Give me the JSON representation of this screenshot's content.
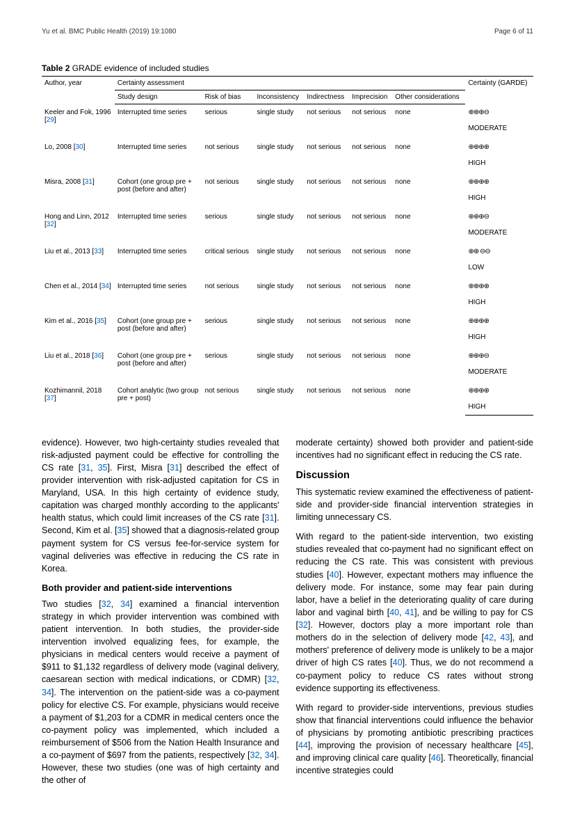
{
  "header": {
    "left": "Yu et al. BMC Public Health        (2019) 19:1080",
    "right": "Page 6 of 11"
  },
  "table": {
    "title_bold": "Table 2",
    "title_rest": " GRADE evidence of included studies",
    "headers": {
      "author": "Author, year",
      "assessment": "Certainty assessment",
      "design": "Study design",
      "risk": "Risk of bias",
      "inconsistency": "Inconsistency",
      "indirectness": "Indirectness",
      "imprecision": "Imprecision",
      "other": "Other considerations",
      "certainty": "Certainty (GARDE)"
    },
    "rows": [
      {
        "author": "Keeler and Fok, 1996 [",
        "ref": "29",
        "author2": "]",
        "design": "Interrupted time series",
        "risk": "serious",
        "inc": "single study",
        "ind": "not serious",
        "imp": "not serious",
        "other": "none",
        "sym": "⊕⊕⊕⊖",
        "label": "MODERATE"
      },
      {
        "author": "Lo, 2008 [",
        "ref": "30",
        "author2": "]",
        "design": "Interrupted time series",
        "risk": "not serious",
        "inc": "single study",
        "ind": "not serious",
        "imp": "not serious",
        "other": "none",
        "sym": "⊕⊕⊕⊕",
        "label": "HIGH"
      },
      {
        "author": "Misra, 2008 [",
        "ref": "31",
        "author2": "]",
        "design": "Cohort (one group pre + post (before and after)",
        "risk": "not serious",
        "inc": "single study",
        "ind": "not serious",
        "imp": "not serious",
        "other": "none",
        "sym": "⊕⊕⊕⊕",
        "label": "HIGH"
      },
      {
        "author": "Hong and Linn, 2012 [",
        "ref": "32",
        "author2": "]",
        "design": "Interrupted time series",
        "risk": "serious",
        "inc": "single study",
        "ind": "not serious",
        "imp": "not serious",
        "other": "none",
        "sym": "⊕⊕⊕⊖",
        "label": "MODERATE"
      },
      {
        "author": "Liu et al., 2013 [",
        "ref": "33",
        "author2": "]",
        "design": "Interrupted time series",
        "risk": "critical serious",
        "inc": "single study",
        "ind": "not serious",
        "imp": "not serious",
        "other": "none",
        "sym": "⊕⊕ ⊖⊖",
        "label": "LOW"
      },
      {
        "author": "Chen et al., 2014 [",
        "ref": "34",
        "author2": "]",
        "design": "Interrupted time series",
        "risk": "not serious",
        "inc": "single study",
        "ind": "not serious",
        "imp": "not serious",
        "other": "none",
        "sym": "⊕⊕⊕⊕",
        "label": "HIGH"
      },
      {
        "author": "Kim et al., 2016 [",
        "ref": "35",
        "author2": "]",
        "design": "Cohort (one group pre + post (before and after)",
        "risk": "serious",
        "inc": "single study",
        "ind": "not serious",
        "imp": "not serious",
        "other": "none",
        "sym": "⊕⊕⊕⊕",
        "label": "HIGH"
      },
      {
        "author": "Liu et al., 2018 [",
        "ref": "36",
        "author2": "]",
        "design": "Cohort (one group pre + post (before and after)",
        "risk": "serious",
        "inc": "single study",
        "ind": "not serious",
        "imp": "not serious",
        "other": "none",
        "sym": "⊕⊕⊕⊖",
        "label": "MODERATE"
      },
      {
        "author": "Kozhimannil, 2018 [",
        "ref": "37",
        "author2": "]",
        "design": "Cohort analytic (two group pre + post)",
        "risk": "not serious",
        "inc": "single study",
        "ind": "not serious",
        "imp": "not serious",
        "other": "none",
        "sym": "⊕⊕⊕⊕",
        "label": "HIGH"
      }
    ]
  },
  "text": {
    "left": {
      "p1a": "evidence). However, two high-certainty studies revealed that risk-adjusted payment could be effective for controlling the CS rate [",
      "r31a": "31",
      "p1b": ", ",
      "r35a": "35",
      "p1c": "]. First, Misra [",
      "r31b": "31",
      "p1d": "] described the effect of provider intervention with risk-adjusted capitation for CS in Maryland, USA. In this high certainty of evidence study, capitation was charged monthly according to the applicants' health status, which could limit increases of the CS rate [",
      "r31c": "31",
      "p1e": "]. Second, Kim et al. [",
      "r35b": "35",
      "p1f": "] showed that a diagnosis-related group payment system for CS versus fee-for-service system for vaginal deliveries was effective in reducing the CS rate in Korea.",
      "h1": "Both provider and patient-side interventions",
      "p2a": "Two studies [",
      "r32a": "32",
      "p2b": ", ",
      "r34a": "34",
      "p2c": "] examined a financial intervention strategy in which provider intervention was combined with patient intervention. In both studies, the provider-side intervention involved equalizing fees, for example, the physicians in medical centers would receive a payment of $911 to $1,132 regardless of delivery mode (vaginal delivery, caesarean section with medical indications, or CDMR) [",
      "r32b": "32",
      "p2d": ", ",
      "r34b": "34",
      "p2e": "]. The intervention on the patient-side was a co-payment policy for elective CS. For example, physicians would receive a payment of $1,203 for a CDMR in medical centers once the co-payment policy was implemented, which included a reimbursement of $506 from the Nation Health Insurance and a co-payment of $697 from the patients, respectively [",
      "r32c": "32",
      "p2f": ", ",
      "r34c": "34",
      "p2g": "]. However, these two studies (one was of high certainty and the other of"
    },
    "right": {
      "p1": "moderate certainty) showed both provider and patient-side incentives had no significant effect in reducing the CS rate.",
      "h1": "Discussion",
      "p2": "This systematic review examined the effectiveness of patient-side and provider-side financial intervention strategies in limiting unnecessary CS.",
      "p3a": "With regard to the patient-side intervention, two existing studies revealed that co-payment had no significant effect on reducing the CS rate. This was consistent with previous studies [",
      "r40a": "40",
      "p3b": "]. However, expectant mothers may influence the delivery mode. For instance, some may fear pain during labor, have a belief in the deteriorating quality of care during labor and vaginal birth [",
      "r40b": "40",
      "p3c": ", ",
      "r41": "41",
      "p3d": "], and be willing to pay for CS [",
      "r32": "32",
      "p3e": "]. However, doctors play a more important role than mothers do in the selection of delivery mode [",
      "r42": "42",
      "p3f": ", ",
      "r43": "43",
      "p3g": "], and mothers' preference of delivery mode is unlikely to be a major driver of high CS rates [",
      "r40c": "40",
      "p3h": "]. Thus, we do not recommend a co-payment policy to reduce CS rates without strong evidence supporting its effectiveness.",
      "p4a": "With regard to provider-side interventions, previous studies show that financial interventions could influence the behavior of physicians by promoting antibiotic prescribing practices [",
      "r44": "44",
      "p4b": "], improving the provision of necessary healthcare [",
      "r45": "45",
      "p4c": "], and improving clinical care quality [",
      "r46": "46",
      "p4d": "]. Theoretically, financial incentive strategies could"
    }
  }
}
